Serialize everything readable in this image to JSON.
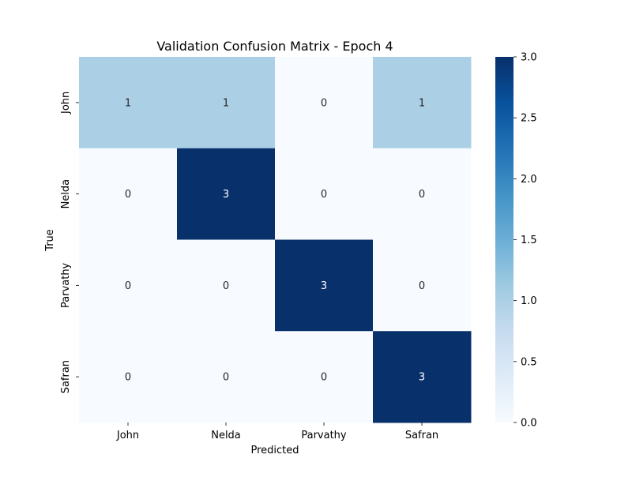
{
  "chart_data": {
    "type": "heatmap",
    "title": "Validation Confusion Matrix - Epoch 4",
    "xlabel": "Predicted",
    "ylabel": "True",
    "x_categories": [
      "John",
      "Nelda",
      "Parvathy",
      "Safran"
    ],
    "y_categories": [
      "John",
      "Nelda",
      "Parvathy",
      "Safran"
    ],
    "values": [
      [
        1,
        1,
        0,
        1
      ],
      [
        0,
        3,
        0,
        0
      ],
      [
        0,
        0,
        3,
        0
      ],
      [
        0,
        0,
        0,
        3
      ]
    ],
    "colorbar": {
      "range": [
        0,
        3
      ],
      "ticks": [
        "0.0",
        "0.5",
        "1.0",
        "1.5",
        "2.0",
        "2.5",
        "3.0"
      ],
      "colormap": "Blues"
    }
  }
}
